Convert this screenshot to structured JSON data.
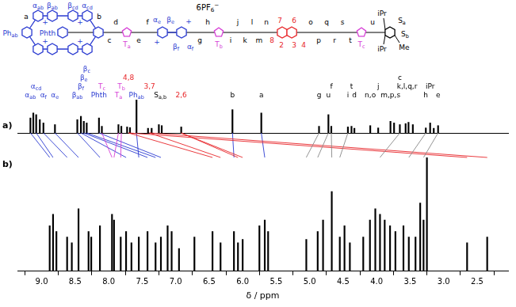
{
  "structure": {
    "counterion": {
      "text": "6PF",
      "sub": "6",
      "sup": "−",
      "color": "#000000"
    },
    "labels": [
      {
        "text": "α",
        "sub": "ab",
        "color": "#2b3bd1"
      },
      {
        "text": "β",
        "sub": "ab",
        "color": "#2b3bd1"
      },
      {
        "text": "β",
        "sub": "cd",
        "color": "#2b3bd1"
      },
      {
        "text": "α",
        "sub": "cd",
        "color": "#2b3bd1"
      },
      {
        "text": "a",
        "color": "#000000"
      },
      {
        "text": "b",
        "color": "#000000"
      },
      {
        "text": "Ph",
        "sub": "ab",
        "color": "#2b3bd1"
      },
      {
        "text": "Phth",
        "color": "#2b3bd1"
      },
      {
        "text": "c",
        "color": "#000000"
      },
      {
        "text": "d",
        "color": "#000000"
      },
      {
        "text": "T",
        "sub": "a",
        "color": "#d63fd6"
      },
      {
        "text": "e",
        "color": "#000000"
      },
      {
        "text": "f",
        "color": "#000000"
      },
      {
        "text": "α",
        "sub": "e",
        "color": "#2b3bd1"
      },
      {
        "text": "β",
        "sub": "e",
        "color": "#2b3bd1"
      },
      {
        "text": "β",
        "sub": "f",
        "color": "#2b3bd1"
      },
      {
        "text": "α",
        "sub": "f",
        "color": "#2b3bd1"
      },
      {
        "text": "g",
        "color": "#000000"
      },
      {
        "text": "h",
        "color": "#000000"
      },
      {
        "text": "T",
        "sub": "b",
        "color": "#d63fd6"
      },
      {
        "text": "i",
        "color": "#000000"
      },
      {
        "text": "j",
        "color": "#000000"
      },
      {
        "text": "k",
        "color": "#000000"
      },
      {
        "text": "l",
        "color": "#000000"
      },
      {
        "text": "m",
        "color": "#000000"
      },
      {
        "text": "n",
        "color": "#000000"
      },
      {
        "text": "8",
        "color": "#e8262a"
      },
      {
        "text": "7",
        "color": "#e8262a"
      },
      {
        "text": "6",
        "color": "#e8262a"
      },
      {
        "text": "2",
        "color": "#e8262a"
      },
      {
        "text": "3",
        "color": "#e8262a"
      },
      {
        "text": "4",
        "color": "#e8262a"
      },
      {
        "text": "o",
        "color": "#000000"
      },
      {
        "text": "p",
        "color": "#000000"
      },
      {
        "text": "q",
        "color": "#000000"
      },
      {
        "text": "r",
        "color": "#000000"
      },
      {
        "text": "s",
        "color": "#000000"
      },
      {
        "text": "t",
        "color": "#000000"
      },
      {
        "text": "T",
        "sub": "c",
        "color": "#d63fd6"
      },
      {
        "text": "u",
        "color": "#000000"
      },
      {
        "text": "S",
        "sub": "a",
        "color": "#000000"
      },
      {
        "text": "S",
        "sub": "b",
        "color": "#000000"
      },
      {
        "text": "iPr",
        "color": "#000000"
      },
      {
        "text": "iPr",
        "color": "#000000"
      },
      {
        "text": "Me",
        "color": "#000000"
      },
      {
        "text": "+",
        "color": "#2b3bd1"
      },
      {
        "text": "+",
        "color": "#2b3bd1"
      },
      {
        "text": "+",
        "color": "#2b3bd1"
      },
      {
        "text": "+",
        "color": "#2b3bd1"
      },
      {
        "text": "+",
        "color": "#2b3bd1"
      },
      {
        "text": "+",
        "color": "#2b3bd1"
      }
    ]
  },
  "chart_data": [
    {
      "type": "bar",
      "title": "a)",
      "x": [
        8.92,
        8.88,
        8.84,
        8.79,
        8.74,
        8.58,
        8.27,
        8.22,
        8.18,
        8.14,
        7.97,
        7.93,
        7.7,
        7.66,
        7.58,
        7.54,
        7.45,
        7.29,
        7.24,
        7.14,
        7.1,
        6.83,
        6.12,
        5.72,
        4.92,
        4.79,
        4.75,
        4.52,
        4.47,
        4.43,
        4.21,
        4.1,
        3.93,
        3.88,
        3.8,
        3.72,
        3.68,
        3.62,
        3.44,
        3.38,
        3.33,
        3.27
      ],
      "values": [
        45,
        60,
        55,
        40,
        30,
        25,
        40,
        50,
        35,
        30,
        45,
        20,
        25,
        20,
        18,
        16,
        100,
        14,
        14,
        25,
        22,
        18,
        70,
        60,
        20,
        55,
        20,
        18,
        20,
        14,
        22,
        15,
        35,
        30,
        25,
        28,
        32,
        25,
        15,
        30,
        14,
        22
      ],
      "color": "#000000",
      "xlim": [
        9.1,
        2.3
      ],
      "ylim": [
        0,
        100
      ],
      "grid": false,
      "tick_labels": false,
      "annotations": [
        {
          "text": "α",
          "sub": "ab",
          "x": 8.92,
          "color": "#2b3bd1"
        },
        {
          "text": "α",
          "sub": "cd",
          "x": 8.84,
          "color": "#2b3bd1"
        },
        {
          "text": "α",
          "sub": "f",
          "x": 8.74,
          "color": "#2b3bd1"
        },
        {
          "text": "α",
          "sub": "e",
          "x": 8.58,
          "color": "#2b3bd1"
        },
        {
          "text": "β",
          "sub": "ab",
          "x": 8.27,
          "color": "#2b3bd1"
        },
        {
          "text": "β",
          "sub": "f",
          "x": 8.22,
          "color": "#2b3bd1"
        },
        {
          "text": "β",
          "sub": "e",
          "x": 8.18,
          "color": "#2b3bd1"
        },
        {
          "text": "β",
          "sub": "c",
          "x": 8.14,
          "color": "#2b3bd1"
        },
        {
          "text": "Phth",
          "x": 7.97,
          "color": "#2b3bd1"
        },
        {
          "text": "T",
          "sub": "c",
          "x": 7.93,
          "color": "#d63fd6"
        },
        {
          "text": "T",
          "sub": "a",
          "x": 7.7,
          "color": "#d63fd6"
        },
        {
          "text": "T",
          "sub": "b",
          "x": 7.66,
          "color": "#d63fd6"
        },
        {
          "text": "4,8",
          "x": 7.56,
          "color": "#e8262a"
        },
        {
          "text": "Ph",
          "sub": "ab",
          "x": 7.45,
          "color": "#2b3bd1"
        },
        {
          "text": "3,7",
          "x": 7.27,
          "color": "#e8262a"
        },
        {
          "text": "S",
          "sub": "a,b",
          "x": 7.12,
          "color": "#000000"
        },
        {
          "text": "2,6",
          "x": 6.83,
          "color": "#e8262a"
        },
        {
          "text": "b",
          "x": 6.12,
          "color": "#000000"
        },
        {
          "text": "a",
          "x": 5.72,
          "color": "#000000"
        },
        {
          "text": "g",
          "x": 4.92,
          "color": "#000000"
        },
        {
          "text": "u",
          "x": 4.79,
          "color": "#000000"
        },
        {
          "text": "f",
          "x": 4.75,
          "color": "#000000"
        },
        {
          "text": "i",
          "x": 4.52,
          "color": "#000000"
        },
        {
          "text": "t",
          "x": 4.47,
          "color": "#000000"
        },
        {
          "text": "d",
          "x": 4.43,
          "color": "#000000"
        },
        {
          "text": "n,o",
          "x": 4.21,
          "color": "#000000"
        },
        {
          "text": "j",
          "x": 4.1,
          "color": "#000000"
        },
        {
          "text": "m,p,s",
          "x": 3.93,
          "color": "#000000"
        },
        {
          "text": "c",
          "x": 3.8,
          "color": "#000000"
        },
        {
          "text": "k,l,q,r",
          "x": 3.7,
          "color": "#000000"
        },
        {
          "text": "h",
          "x": 3.44,
          "color": "#000000"
        },
        {
          "text": "iPr",
          "x": 3.38,
          "color": "#000000"
        },
        {
          "text": "e",
          "x": 3.27,
          "color": "#000000"
        }
      ]
    },
    {
      "type": "bar",
      "title": "b)",
      "x": [
        8.88,
        8.83,
        8.78,
        8.62,
        8.55,
        8.45,
        8.3,
        8.26,
        8.13,
        7.95,
        7.92,
        7.82,
        7.74,
        7.66,
        7.55,
        7.42,
        7.3,
        7.22,
        7.12,
        7.06,
        6.95,
        6.72,
        6.45,
        6.33,
        6.13,
        6.07,
        6.0,
        5.75,
        5.67,
        5.62,
        5.05,
        4.88,
        4.8,
        4.67,
        4.55,
        4.48,
        4.4,
        4.2,
        4.1,
        4.02,
        3.95,
        3.88,
        3.8,
        3.72,
        3.6,
        3.52,
        3.42,
        3.35,
        3.3,
        3.25,
        2.65,
        2.35
      ],
      "values": [
        40,
        50,
        35,
        30,
        25,
        55,
        35,
        30,
        40,
        50,
        45,
        30,
        35,
        25,
        30,
        35,
        25,
        30,
        40,
        35,
        20,
        30,
        35,
        25,
        35,
        25,
        28,
        40,
        45,
        35,
        28,
        35,
        45,
        70,
        30,
        40,
        25,
        30,
        45,
        55,
        50,
        45,
        40,
        35,
        40,
        30,
        30,
        60,
        45,
        100,
        25,
        30
      ],
      "color": "#000000",
      "xlim": [
        9.1,
        2.3
      ],
      "xticks": [
        {
          "value": 9,
          "label": "9.0"
        },
        8.5,
        {
          "value": 8,
          "label": "8.0"
        },
        7.5,
        {
          "value": 7,
          "label": "7.0"
        },
        6.5,
        {
          "value": 6,
          "label": "6.0"
        },
        5.5,
        {
          "value": 5,
          "label": "5.0"
        },
        4.5,
        {
          "value": 4,
          "label": "4.0"
        },
        3.5,
        {
          "value": 3,
          "label": "3.0"
        },
        2.5
      ],
      "x_label": "δ / ppm",
      "ylim": [
        0,
        100
      ],
      "grid": false,
      "tick_labels": "x"
    }
  ],
  "assignments": [
    {
      "from": 8.92,
      "to": 8.88,
      "color": "#2b3bd1"
    },
    {
      "from": 8.84,
      "to": 8.83,
      "color": "#2b3bd1"
    },
    {
      "from": 8.74,
      "to": 8.62,
      "color": "#2b3bd1"
    },
    {
      "from": 8.58,
      "to": 8.45,
      "color": "#2b3bd1"
    },
    {
      "from": 8.27,
      "to": 8.13,
      "color": "#2b3bd1"
    },
    {
      "from": 8.22,
      "to": 7.74,
      "color": "#2b3bd1"
    },
    {
      "from": 8.18,
      "to": 7.42,
      "color": "#2b3bd1"
    },
    {
      "from": 8.14,
      "to": 7.3,
      "color": "#2b3bd1"
    },
    {
      "from": 7.97,
      "to": 7.22,
      "color": "#2b3bd1"
    },
    {
      "from": 7.45,
      "to": 7.55,
      "color": "#2b3bd1"
    },
    {
      "from": 6.12,
      "to": 6.13,
      "color": "#2b3bd1"
    },
    {
      "from": 5.72,
      "to": 5.67,
      "color": "#2b3bd1"
    },
    {
      "from": 7.93,
      "to": 7.95,
      "color": "#d63fd6"
    },
    {
      "from": 7.7,
      "to": 7.92,
      "color": "#d63fd6"
    },
    {
      "from": 7.66,
      "to": 7.82,
      "color": "#d63fd6"
    },
    {
      "from": 7.56,
      "to": 6.45,
      "color": "#e8262a"
    },
    {
      "from": 7.56,
      "to": 2.65,
      "color": "#e8262a"
    },
    {
      "from": 7.27,
      "to": 6.33,
      "color": "#e8262a"
    },
    {
      "from": 7.27,
      "to": 2.35,
      "color": "#e8262a"
    },
    {
      "from": 6.83,
      "to": 6.07,
      "color": "#e8262a"
    },
    {
      "from": 6.83,
      "to": 6.0,
      "color": "#e8262a"
    },
    {
      "from": 4.92,
      "to": 5.05,
      "color": "#888888"
    },
    {
      "from": 4.79,
      "to": 4.88,
      "color": "#888888"
    },
    {
      "from": 4.75,
      "to": 4.67,
      "color": "#888888"
    },
    {
      "from": 4.52,
      "to": 4.55,
      "color": "#888888"
    },
    {
      "from": 3.8,
      "to": 3.95,
      "color": "#888888"
    },
    {
      "from": 3.44,
      "to": 3.52,
      "color": "#888888"
    },
    {
      "from": 3.27,
      "to": 3.3,
      "color": "#888888"
    }
  ]
}
